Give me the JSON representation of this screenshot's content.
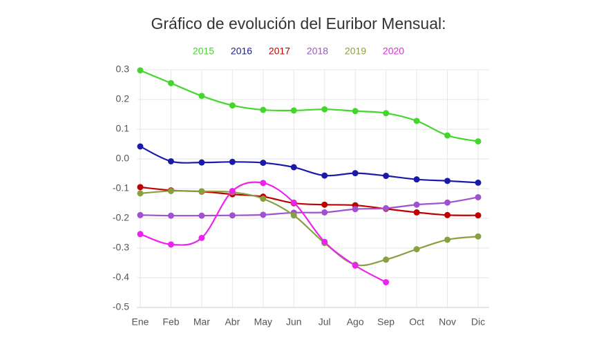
{
  "chart_data": {
    "type": "line",
    "title": "Gráfico de evolución del Euribor Mensual:",
    "categories": [
      "Ene",
      "Feb",
      "Mar",
      "Abr",
      "May",
      "Jun",
      "Jul",
      "Ago",
      "Sep",
      "Oct",
      "Nov",
      "Dic"
    ],
    "series": [
      {
        "name": "2015",
        "color": "#44d62c",
        "values": [
          0.298,
          0.255,
          0.212,
          0.18,
          0.165,
          0.163,
          0.167,
          0.161,
          0.154,
          0.128,
          0.079,
          0.059
        ]
      },
      {
        "name": "2016",
        "color": "#1a1aa6",
        "values": [
          0.042,
          -0.008,
          -0.012,
          -0.01,
          -0.013,
          -0.028,
          -0.056,
          -0.048,
          -0.057,
          -0.069,
          -0.074,
          -0.08
        ]
      },
      {
        "name": "2017",
        "color": "#c00000",
        "values": [
          -0.095,
          -0.106,
          -0.11,
          -0.119,
          -0.127,
          -0.149,
          -0.154,
          -0.156,
          -0.168,
          -0.18,
          -0.189,
          -0.19
        ]
      },
      {
        "name": "2018",
        "color": "#a050d0",
        "values": [
          -0.189,
          -0.191,
          -0.191,
          -0.19,
          -0.188,
          -0.181,
          -0.18,
          -0.169,
          -0.166,
          -0.154,
          -0.147,
          -0.129
        ]
      },
      {
        "name": "2019",
        "color": "#88a040",
        "values": [
          -0.116,
          -0.108,
          -0.109,
          -0.112,
          -0.134,
          -0.19,
          -0.283,
          -0.356,
          -0.339,
          -0.304,
          -0.272,
          -0.261
        ]
      },
      {
        "name": "2020",
        "color": "#ee22ee",
        "values": [
          -0.253,
          -0.288,
          -0.266,
          -0.108,
          -0.081,
          -0.147,
          -0.279,
          -0.359,
          -0.415,
          null,
          null,
          null
        ]
      }
    ],
    "ylim": [
      -0.5,
      0.3
    ],
    "yticks": [
      {
        "value": -0.5,
        "label": "-0.5"
      },
      {
        "value": -0.4,
        "label": "-0.4"
      },
      {
        "value": -0.3,
        "label": "-0.3"
      },
      {
        "value": -0.2,
        "label": "-0.2"
      },
      {
        "value": -0.1,
        "label": "-0.1"
      },
      {
        "value": 0,
        "label": "0.0"
      },
      {
        "value": 0.1,
        "label": "0.1"
      },
      {
        "value": 0.2,
        "label": "0.2"
      },
      {
        "value": 0.3,
        "label": "0.3"
      }
    ],
    "grid": true
  }
}
